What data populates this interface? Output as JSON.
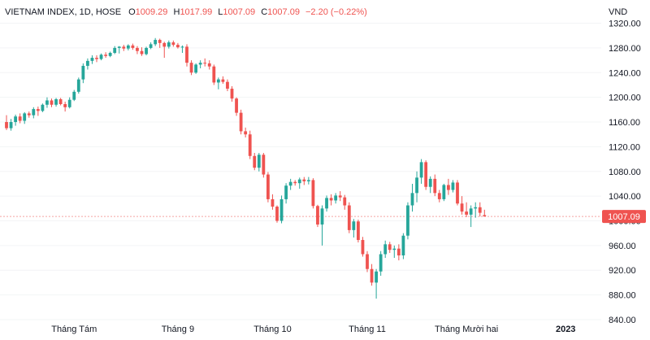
{
  "header": {
    "symbol": "VIETNAM INDEX, 1D, HOSE",
    "open_label": "O",
    "open": "1009.29",
    "high_label": "H",
    "high": "1017.99",
    "low_label": "L",
    "low": "1007.09",
    "close_label": "C",
    "close": "1007.09",
    "change": "−2.20 (−0.22%)"
  },
  "colors": {
    "up": "#26a69a",
    "down": "#ef5350",
    "text": "#131722",
    "change_text": "#ef5350",
    "last_price_line": "#f5a3a2"
  },
  "chart_data": {
    "type": "candlestick",
    "currency_label": "VND",
    "last_price_label": "1007.09",
    "ylim": [
      836,
      1326
    ],
    "y_ticks": [
      840,
      880,
      920,
      960,
      1000,
      1040,
      1080,
      1120,
      1160,
      1200,
      1240,
      1280,
      1320
    ],
    "x_ticks": [
      {
        "label": "Tháng Tám",
        "index": 15,
        "bold": false
      },
      {
        "label": "Tháng 9",
        "index": 38,
        "bold": false
      },
      {
        "label": "Tháng 10",
        "index": 59,
        "bold": false
      },
      {
        "label": "Tháng 11",
        "index": 80,
        "bold": false
      },
      {
        "label": "Tháng Mười hai",
        "index": 102,
        "bold": false
      },
      {
        "label": "2023",
        "index": 124,
        "bold": true
      }
    ],
    "candles": [
      [
        1160,
        1171,
        1147,
        1150
      ],
      [
        1150,
        1165,
        1146,
        1160
      ],
      [
        1160,
        1172,
        1154,
        1169
      ],
      [
        1169,
        1174,
        1158,
        1162
      ],
      [
        1162,
        1176,
        1157,
        1174
      ],
      [
        1174,
        1177,
        1167,
        1171
      ],
      [
        1171,
        1184,
        1166,
        1181
      ],
      [
        1181,
        1185,
        1170,
        1178
      ],
      [
        1178,
        1190,
        1176,
        1188
      ],
      [
        1188,
        1200,
        1183,
        1195
      ],
      [
        1195,
        1198,
        1184,
        1188
      ],
      [
        1188,
        1199,
        1185,
        1197
      ],
      [
        1197,
        1199,
        1187,
        1189
      ],
      [
        1189,
        1193,
        1177,
        1184
      ],
      [
        1184,
        1200,
        1182,
        1196
      ],
      [
        1196,
        1212,
        1194,
        1209
      ],
      [
        1209,
        1232,
        1206,
        1229
      ],
      [
        1229,
        1255,
        1223,
        1251
      ],
      [
        1251,
        1263,
        1245,
        1259
      ],
      [
        1259,
        1268,
        1254,
        1264
      ],
      [
        1264,
        1268,
        1257,
        1262
      ],
      [
        1262,
        1271,
        1260,
        1269
      ],
      [
        1269,
        1273,
        1264,
        1267
      ],
      [
        1267,
        1274,
        1265,
        1272
      ],
      [
        1272,
        1283,
        1270,
        1280
      ],
      [
        1280,
        1283,
        1271,
        1282
      ],
      [
        1282,
        1285,
        1275,
        1279
      ],
      [
        1279,
        1286,
        1276,
        1284
      ],
      [
        1284,
        1287,
        1277,
        1280
      ],
      [
        1280,
        1283,
        1270,
        1275
      ],
      [
        1275,
        1281,
        1267,
        1270
      ],
      [
        1270,
        1282,
        1268,
        1280
      ],
      [
        1280,
        1289,
        1278,
        1286
      ],
      [
        1286,
        1296,
        1283,
        1293
      ],
      [
        1293,
        1295,
        1280,
        1288
      ],
      [
        1288,
        1290,
        1264,
        1282
      ],
      [
        1282,
        1292,
        1279,
        1289
      ],
      [
        1289,
        1292,
        1282,
        1285
      ],
      [
        1285,
        1288,
        1279,
        1281
      ],
      [
        1281,
        1284,
        1272,
        1282
      ],
      [
        1282,
        1286,
        1250,
        1256
      ],
      [
        1256,
        1260,
        1236,
        1240
      ],
      [
        1240,
        1255,
        1238,
        1253
      ],
      [
        1253,
        1260,
        1247,
        1256
      ],
      [
        1256,
        1263,
        1250,
        1255
      ],
      [
        1255,
        1260,
        1245,
        1250
      ],
      [
        1250,
        1253,
        1220,
        1224
      ],
      [
        1224,
        1232,
        1213,
        1229
      ],
      [
        1229,
        1234,
        1222,
        1225
      ],
      [
        1225,
        1229,
        1210,
        1214
      ],
      [
        1214,
        1218,
        1193,
        1198
      ],
      [
        1198,
        1200,
        1170,
        1175
      ],
      [
        1175,
        1180,
        1140,
        1145
      ],
      [
        1145,
        1151,
        1135,
        1140
      ],
      [
        1140,
        1146,
        1100,
        1105
      ],
      [
        1105,
        1110,
        1082,
        1086
      ],
      [
        1086,
        1110,
        1080,
        1107
      ],
      [
        1107,
        1110,
        1070,
        1075
      ],
      [
        1075,
        1079,
        1030,
        1035
      ],
      [
        1035,
        1043,
        1018,
        1023
      ],
      [
        1023,
        1025,
        997,
        1000
      ],
      [
        1000,
        1041,
        996,
        1035
      ],
      [
        1035,
        1061,
        1028,
        1057
      ],
      [
        1057,
        1068,
        1050,
        1063
      ],
      [
        1063,
        1066,
        1057,
        1061
      ],
      [
        1061,
        1070,
        1052,
        1067
      ],
      [
        1067,
        1071,
        1058,
        1064
      ],
      [
        1064,
        1071,
        1059,
        1066
      ],
      [
        1066,
        1069,
        1020,
        1024
      ],
      [
        1024,
        1026,
        990,
        994
      ],
      [
        994,
        1025,
        960,
        1020
      ],
      [
        1020,
        1041,
        1015,
        1037
      ],
      [
        1037,
        1043,
        1025,
        1033
      ],
      [
        1033,
        1045,
        1028,
        1041
      ],
      [
        1041,
        1048,
        1032,
        1038
      ],
      [
        1038,
        1042,
        1018,
        1025
      ],
      [
        1025,
        1030,
        980,
        985
      ],
      [
        985,
        1003,
        973,
        999
      ],
      [
        999,
        1002,
        965,
        969
      ],
      [
        969,
        974,
        942,
        946
      ],
      [
        946,
        951,
        917,
        922
      ],
      [
        922,
        930,
        895,
        900
      ],
      [
        900,
        922,
        874,
        918
      ],
      [
        918,
        951,
        911,
        946
      ],
      [
        946,
        968,
        940,
        962
      ],
      [
        962,
        966,
        948,
        953
      ],
      [
        953,
        960,
        940,
        955
      ],
      [
        955,
        962,
        936,
        944
      ],
      [
        944,
        980,
        938,
        976
      ],
      [
        976,
        1030,
        970,
        1025
      ],
      [
        1025,
        1060,
        1015,
        1045
      ],
      [
        1045,
        1080,
        1030,
        1070
      ],
      [
        1070,
        1100,
        1060,
        1095
      ],
      [
        1095,
        1098,
        1050,
        1055
      ],
      [
        1055,
        1072,
        1045,
        1068
      ],
      [
        1068,
        1075,
        1040,
        1045
      ],
      [
        1045,
        1050,
        1030,
        1035
      ],
      [
        1035,
        1060,
        1032,
        1058
      ],
      [
        1058,
        1068,
        1042,
        1050
      ],
      [
        1050,
        1066,
        1046,
        1062
      ],
      [
        1062,
        1066,
        1025,
        1028
      ],
      [
        1028,
        1040,
        1010,
        1015
      ],
      [
        1015,
        1030,
        1006,
        1010
      ],
      [
        1010,
        1025,
        990,
        1020
      ],
      [
        1020,
        1030,
        1005,
        1022
      ],
      [
        1022,
        1030,
        1007,
        1013
      ],
      [
        1009.29,
        1017.99,
        1007.09,
        1007.09
      ]
    ]
  }
}
